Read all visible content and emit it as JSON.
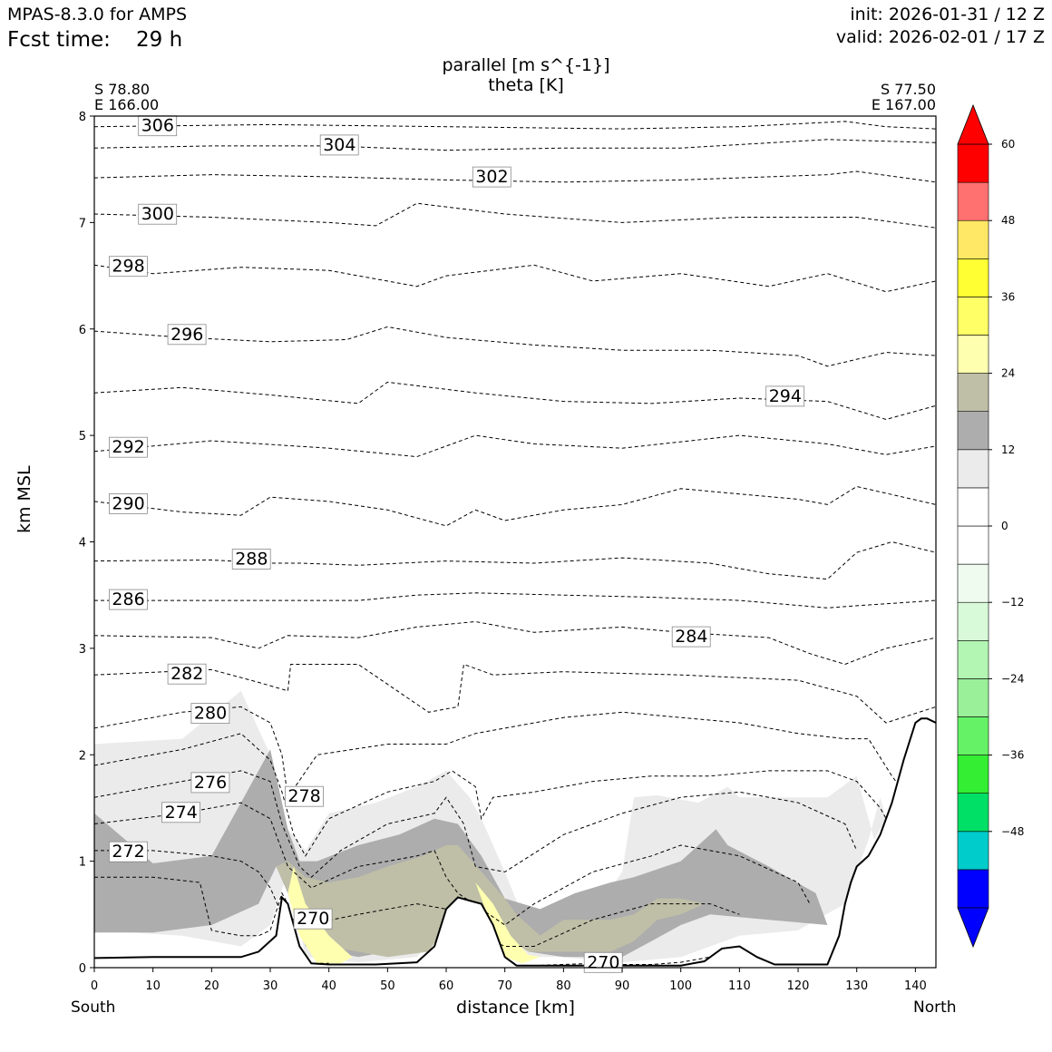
{
  "header": {
    "model": "MPAS-8.3.0 for AMPS",
    "fcst_label": "Fcst time:",
    "fcst_value": "29 h",
    "init": "init: 2026-01-31 / 12 Z",
    "valid": "valid: 2026-02-01 / 17 Z"
  },
  "endpoints": {
    "left_lat": "S 78.80",
    "left_lon": "E 166.00",
    "right_lat": "S 77.50",
    "right_lon": "E 167.00",
    "left_dir": "South",
    "right_dir": "North"
  },
  "chart_data": {
    "type": "cross-section",
    "title": "parallel [m s^{-1}]",
    "subtitle": "theta [K]",
    "xlabel": "distance [km]",
    "ylabel": "km MSL",
    "xlim": [
      0,
      143.5
    ],
    "ylim": [
      0,
      8
    ],
    "xticks": [
      0,
      10,
      20,
      30,
      40,
      50,
      60,
      70,
      80,
      90,
      100,
      110,
      120,
      130,
      140
    ],
    "yticks": [
      0,
      1,
      2,
      3,
      4,
      5,
      6,
      7,
      8
    ],
    "terrain": {
      "x": [
        0,
        10,
        25,
        28,
        31,
        32,
        33,
        35,
        37,
        40,
        48,
        55,
        58,
        60,
        62,
        64,
        66,
        68,
        70,
        72,
        75,
        100,
        104,
        107,
        110,
        113,
        116,
        125,
        127,
        128,
        129,
        130,
        132,
        134,
        136,
        138,
        140,
        141,
        142,
        143.5
      ],
      "y": [
        0.09,
        0.1,
        0.1,
        0.15,
        0.3,
        0.66,
        0.6,
        0.2,
        0.04,
        0.03,
        0.03,
        0.05,
        0.2,
        0.55,
        0.66,
        0.63,
        0.6,
        0.4,
        0.1,
        0.02,
        0.02,
        0.02,
        0.06,
        0.18,
        0.2,
        0.1,
        0.03,
        0.03,
        0.3,
        0.6,
        0.8,
        0.95,
        1.05,
        1.25,
        1.55,
        1.95,
        2.3,
        2.34,
        2.34,
        2.3
      ]
    },
    "wind_colorbar": {
      "levels": [
        -60,
        -54,
        -48,
        -42,
        -36,
        -30,
        -24,
        -18,
        -12,
        -6,
        0,
        6,
        12,
        18,
        24,
        30,
        36,
        42,
        48,
        54,
        60
      ],
      "colors": [
        "#0000ff",
        "#00cccc",
        "#00e066",
        "#33ee33",
        "#66f266",
        "#99f099",
        "#b3f5b3",
        "#d9fad9",
        "#f0fbf0",
        "#ffffff",
        "#ffffff",
        "#ebebeb",
        "#adadad",
        "#bfbfa8",
        "#ffffb0",
        "#ffff66",
        "#ffff33",
        "#ffe866",
        "#ff7070",
        "#ff0000"
      ],
      "ticks": [
        -48,
        -36,
        -24,
        -12,
        0,
        12,
        24,
        36,
        48,
        60
      ],
      "tick_labels": [
        "−48",
        "−36",
        "−24",
        "−12",
        "0",
        "12",
        "24",
        "36",
        "48",
        "60"
      ],
      "extend": "both"
    },
    "wind_fill": [
      {
        "level": 6,
        "color": "#ebebeb",
        "x": [
          0,
          15,
          25,
          30,
          33,
          36,
          45,
          55,
          60,
          63,
          66,
          70,
          74,
          80,
          90,
          100,
          110,
          120,
          128,
          132,
          134,
          135,
          133,
          130,
          125,
          110,
          108,
          103,
          96,
          92,
          90,
          85,
          80,
          74,
          70,
          66,
          64,
          60,
          55,
          48,
          40,
          36,
          33,
          30,
          25,
          15,
          0
        ],
        "y": [
          0.35,
          0.3,
          0.2,
          0.4,
          0.9,
          0.1,
          0.05,
          0.1,
          0.4,
          0.7,
          0.6,
          0.3,
          0.1,
          0.1,
          0.05,
          0.1,
          0.3,
          0.35,
          0.6,
          1.2,
          1.6,
          1.4,
          1.2,
          1.8,
          1.6,
          1.6,
          1.7,
          1.55,
          1.62,
          1.6,
          0.9,
          0.5,
          0.45,
          0.35,
          0.9,
          1.4,
          1.6,
          1.85,
          1.7,
          1.55,
          1.45,
          1.1,
          1.3,
          2.0,
          2.6,
          2.15,
          2.1
        ]
      },
      {
        "level": 12,
        "color": "#adadad",
        "x": [
          0,
          10,
          20,
          28,
          31,
          33,
          36,
          45,
          55,
          60,
          62,
          66,
          70,
          74,
          80,
          90,
          95,
          100,
          105,
          115,
          125,
          123,
          115,
          108,
          106,
          100,
          92,
          88,
          82,
          76,
          70,
          66,
          62,
          58,
          52,
          45,
          38,
          35,
          33,
          30,
          27,
          20,
          10,
          0
        ],
        "y": [
          0.33,
          0.33,
          0.4,
          0.6,
          0.95,
          0.7,
          0.2,
          0.1,
          0.2,
          0.5,
          0.7,
          0.5,
          0.3,
          0.15,
          0.1,
          0.1,
          0.25,
          0.4,
          0.5,
          0.45,
          0.4,
          0.7,
          0.95,
          1.15,
          1.3,
          1.0,
          0.85,
          0.8,
          0.7,
          0.55,
          0.65,
          1.05,
          1.35,
          1.4,
          1.25,
          1.15,
          1.0,
          1.0,
          1.3,
          2.05,
          1.75,
          1.05,
          0.98,
          1.45
        ]
      },
      {
        "level": 18,
        "color": "#bfbfa8",
        "x": [
          31,
          34,
          40,
          50,
          57,
          60,
          62,
          66,
          70,
          74,
          82,
          88,
          92,
          96,
          100,
          104,
          100,
          96,
          92,
          88,
          84,
          80,
          76,
          72,
          70,
          66,
          62,
          60,
          56,
          50,
          45,
          40,
          36,
          33
        ],
        "y": [
          0.95,
          0.6,
          0.2,
          0.1,
          0.15,
          0.4,
          0.55,
          0.45,
          0.3,
          0.15,
          0.15,
          0.15,
          0.25,
          0.45,
          0.5,
          0.6,
          0.65,
          0.65,
          0.5,
          0.45,
          0.45,
          0.45,
          0.3,
          0.5,
          0.65,
          0.9,
          1.15,
          1.15,
          1.05,
          0.95,
          0.85,
          0.8,
          0.85,
          1.0
        ]
      },
      {
        "level": 24,
        "color": "#ffffb0",
        "x": [
          34,
          36,
          40,
          44,
          42,
          38,
          35,
          33
        ],
        "y": [
          0.95,
          0.6,
          0.3,
          0.1,
          0.04,
          0.04,
          0.3,
          0.7
        ]
      },
      {
        "level": 24,
        "color": "#ffffb0",
        "x": [
          65,
          68,
          71,
          74,
          76,
          73,
          70,
          67,
          65
        ],
        "y": [
          0.8,
          0.6,
          0.3,
          0.12,
          0.1,
          0.04,
          0.1,
          0.5,
          0.8
        ]
      }
    ],
    "theta_contours": [
      {
        "value": 306,
        "label": "306",
        "label_x": 8,
        "label_y": 7.9,
        "x": [
          0,
          30,
          60,
          90,
          110,
          128,
          135,
          143.5
        ],
        "y": [
          7.9,
          7.92,
          7.9,
          7.88,
          7.9,
          7.95,
          7.9,
          7.88
        ]
      },
      {
        "value": 304,
        "label": "304",
        "label_x": 39,
        "label_y": 7.72,
        "x": [
          0,
          20,
          40,
          60,
          80,
          100,
          125,
          143.5
        ],
        "y": [
          7.7,
          7.72,
          7.72,
          7.68,
          7.7,
          7.7,
          7.78,
          7.75
        ]
      },
      {
        "value": 302,
        "label": "302",
        "label_x": 65,
        "label_y": 7.42,
        "x": [
          0,
          20,
          40,
          60,
          80,
          100,
          125,
          130,
          143.5
        ],
        "y": [
          7.42,
          7.45,
          7.43,
          7.4,
          7.38,
          7.4,
          7.45,
          7.48,
          7.38
        ]
      },
      {
        "value": 300,
        "label": "300",
        "label_x": 8,
        "label_y": 7.07,
        "x": [
          0,
          20,
          40,
          48,
          55,
          70,
          90,
          110,
          130,
          143.5
        ],
        "y": [
          7.08,
          7.05,
          7.0,
          6.97,
          7.18,
          7.08,
          7.0,
          7.05,
          7.05,
          6.95
        ]
      },
      {
        "value": 298,
        "label": "298",
        "label_x": 3,
        "label_y": 6.58,
        "x": [
          0,
          10,
          25,
          40,
          55,
          60,
          75,
          85,
          100,
          115,
          125,
          135,
          143.5
        ],
        "y": [
          6.6,
          6.52,
          6.58,
          6.55,
          6.4,
          6.5,
          6.6,
          6.45,
          6.52,
          6.4,
          6.52,
          6.35,
          6.45
        ]
      },
      {
        "value": 296,
        "label": "296",
        "label_x": 13,
        "label_y": 5.94,
        "x": [
          0,
          15,
          30,
          43,
          50,
          60,
          75,
          90,
          105,
          120,
          125,
          135,
          143.5
        ],
        "y": [
          5.98,
          5.92,
          5.88,
          5.9,
          6.02,
          5.92,
          5.85,
          5.8,
          5.8,
          5.75,
          5.65,
          5.78,
          5.75
        ]
      },
      {
        "value": 294,
        "label": "294",
        "label_x": 115,
        "label_y": 5.36,
        "x": [
          0,
          15,
          30,
          45,
          50,
          65,
          80,
          95,
          110,
          125,
          135,
          143.5
        ],
        "y": [
          5.4,
          5.45,
          5.38,
          5.3,
          5.5,
          5.4,
          5.32,
          5.3,
          5.35,
          5.32,
          5.15,
          5.28
        ]
      },
      {
        "value": 292,
        "label": "292",
        "label_x": 3,
        "label_y": 4.88,
        "x": [
          0,
          20,
          40,
          55,
          65,
          75,
          90,
          110,
          125,
          135,
          143.5
        ],
        "y": [
          4.85,
          4.95,
          4.88,
          4.8,
          5.0,
          4.92,
          4.88,
          5.0,
          4.92,
          4.82,
          4.9
        ]
      },
      {
        "value": 290,
        "label": "290",
        "label_x": 3,
        "label_y": 4.35,
        "x": [
          0,
          15,
          25,
          30,
          40,
          50,
          60,
          65,
          70,
          80,
          90,
          100,
          110,
          120,
          125,
          130,
          143.5
        ],
        "y": [
          4.38,
          4.28,
          4.25,
          4.42,
          4.38,
          4.3,
          4.15,
          4.3,
          4.2,
          4.3,
          4.35,
          4.5,
          4.45,
          4.4,
          4.35,
          4.52,
          4.35
        ]
      },
      {
        "value": 288,
        "label": "288",
        "label_x": 24,
        "label_y": 3.83,
        "x": [
          0,
          20,
          30,
          35,
          45,
          60,
          75,
          90,
          105,
          115,
          125,
          130,
          136,
          143.5
        ],
        "y": [
          3.82,
          3.83,
          3.8,
          3.8,
          3.78,
          3.82,
          3.8,
          3.85,
          3.8,
          3.7,
          3.65,
          3.9,
          4.0,
          3.9
        ]
      },
      {
        "value": 286,
        "label": "286",
        "label_x": 3,
        "label_y": 3.45,
        "x": [
          0,
          20,
          30,
          35,
          45,
          55,
          65,
          80,
          95,
          110,
          125,
          130,
          143.5
        ],
        "y": [
          3.45,
          3.45,
          3.45,
          3.45,
          3.45,
          3.5,
          3.52,
          3.5,
          3.48,
          3.45,
          3.38,
          3.4,
          3.45
        ]
      },
      {
        "value": 284,
        "label": "284",
        "label_x": 99,
        "label_y": 3.1,
        "x": [
          0,
          20,
          28,
          33,
          45,
          55,
          65,
          75,
          90,
          100,
          115,
          122,
          128,
          135,
          143.5
        ],
        "y": [
          3.12,
          3.1,
          3.0,
          3.12,
          3.1,
          3.2,
          3.25,
          3.15,
          3.2,
          3.15,
          3.1,
          2.95,
          2.85,
          3.0,
          3.1
        ]
      },
      {
        "value": 282,
        "label": "282",
        "label_x": 13,
        "label_y": 2.75,
        "x": [
          0,
          20,
          28,
          33,
          33.5,
          45,
          57,
          62,
          63,
          68,
          80,
          100,
          120,
          130,
          135,
          143.5
        ],
        "y": [
          2.75,
          2.8,
          2.68,
          2.6,
          2.85,
          2.85,
          2.4,
          2.45,
          2.85,
          2.75,
          2.78,
          2.75,
          2.7,
          2.55,
          2.3,
          2.45
        ]
      },
      {
        "value": 280,
        "label": "280",
        "label_x": 17,
        "label_y": 2.38,
        "x": [
          0,
          15,
          25,
          30,
          32,
          33,
          38,
          50,
          60,
          65,
          70,
          80,
          90,
          100,
          110,
          120,
          128,
          132,
          136,
          140
        ],
        "y": [
          2.25,
          2.4,
          2.45,
          2.3,
          2.0,
          1.6,
          2.0,
          2.1,
          2.1,
          2.2,
          2.25,
          2.35,
          2.4,
          2.35,
          2.3,
          2.2,
          2.15,
          2.15,
          1.8,
          1.5
        ]
      },
      {
        "value": 278,
        "label": "278",
        "label_x": 33,
        "label_y": 1.6,
        "x": [
          0,
          15,
          25,
          30,
          32,
          34,
          36,
          40,
          50,
          58,
          61,
          65,
          66,
          68,
          75,
          85,
          95,
          105,
          115,
          125,
          130,
          134,
          137,
          139
        ],
        "y": [
          1.9,
          2.05,
          2.2,
          1.95,
          1.65,
          1.25,
          1.05,
          1.4,
          1.65,
          1.75,
          1.85,
          1.7,
          1.4,
          1.6,
          1.65,
          1.75,
          1.8,
          1.8,
          1.85,
          1.85,
          1.75,
          1.5,
          1.2,
          0.9
        ]
      },
      {
        "value": 276,
        "label": "276",
        "label_x": 17,
        "label_y": 1.73,
        "x": [
          0,
          15,
          25,
          30,
          32,
          35,
          37,
          42,
          50,
          58,
          60,
          63,
          65,
          70,
          80,
          90,
          100,
          110,
          120,
          128,
          130
        ],
        "y": [
          1.6,
          1.75,
          1.85,
          1.75,
          1.35,
          0.95,
          0.85,
          1.1,
          1.35,
          1.45,
          1.6,
          1.35,
          0.95,
          0.9,
          1.25,
          1.45,
          1.6,
          1.65,
          1.55,
          1.35,
          1.1
        ]
      },
      {
        "value": 274,
        "label": "274",
        "label_x": 12,
        "label_y": 1.45,
        "x": [
          0,
          15,
          25,
          30,
          33,
          37,
          45,
          55,
          58,
          60,
          62,
          66,
          70,
          75,
          85,
          95,
          100,
          110,
          120,
          122
        ],
        "y": [
          1.35,
          1.45,
          1.55,
          1.4,
          0.95,
          0.75,
          0.95,
          1.05,
          1.1,
          0.85,
          0.7,
          0.55,
          0.4,
          0.6,
          0.9,
          1.05,
          1.15,
          1.05,
          0.8,
          0.6
        ]
      },
      {
        "value": 272,
        "label": "272",
        "label_x": 3,
        "label_y": 1.08,
        "x": [
          0,
          10,
          20,
          25,
          28,
          30,
          32,
          36,
          45,
          55,
          60,
          63,
          66,
          70,
          75,
          85,
          95,
          105,
          110
        ],
        "y": [
          1.1,
          1.1,
          1.05,
          1.0,
          0.9,
          0.75,
          0.5,
          0.4,
          0.5,
          0.6,
          0.55,
          0.45,
          0.3,
          0.2,
          0.2,
          0.45,
          0.6,
          0.6,
          0.5
        ]
      },
      {
        "value": 270,
        "label": "270",
        "label_x": 34.5,
        "label_y": 0.45,
        "x": [
          0,
          10,
          18,
          20,
          25,
          28,
          30,
          32,
          33,
          34,
          35,
          36,
          37,
          40
        ],
        "y": [
          0.85,
          0.85,
          0.8,
          0.35,
          0.3,
          0.3,
          0.35,
          0.7,
          0.6,
          0.3,
          0.12,
          0.06,
          0.04,
          0.04
        ]
      },
      {
        "value": 270,
        "label": "270",
        "label_x": 84,
        "label_y": 0.04,
        "x": [
          75,
          80,
          85,
          90,
          95,
          100,
          105,
          110
        ],
        "y": [
          0.02,
          0.03,
          0.04,
          0.03,
          0.03,
          0.05,
          0.1,
          0.2
        ]
      }
    ]
  }
}
